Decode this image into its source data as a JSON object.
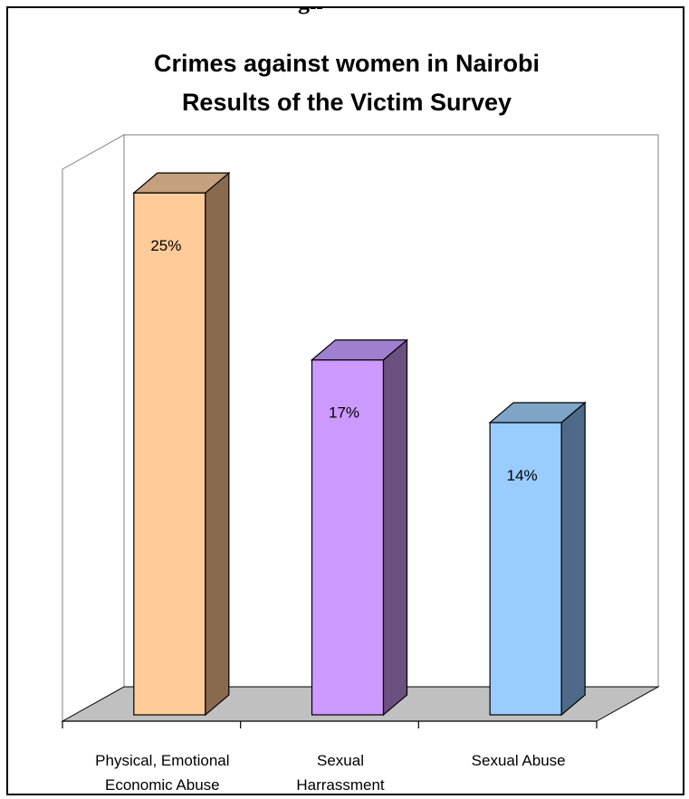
{
  "header": {
    "cut_title": "gh"
  },
  "chart_data": {
    "type": "bar",
    "title": "Crimes against women in  Nairobi",
    "subtitle": "Results of the Victim Survey",
    "xlabel": "",
    "ylabel": "",
    "ylim": [
      0,
      27
    ],
    "grid": false,
    "categories": [
      [
        "Physical, Emotional",
        "Economic Abuse"
      ],
      [
        "Sexual",
        "Harrassment"
      ],
      [
        "Sexual Abuse"
      ]
    ],
    "values": [
      25,
      17,
      14
    ],
    "data_labels": [
      "25%",
      "17%",
      "14%"
    ],
    "colors": {
      "front": [
        "#FFCC99",
        "#CC99FF",
        "#99CCFF"
      ],
      "side": [
        "#8A6A4E",
        "#6B5080",
        "#4E6A88"
      ],
      "top": [
        "#C4A07C",
        "#A07ED0",
        "#7EA4C8"
      ],
      "floor": "#C0C0C0",
      "walls": "#FFFFFF",
      "wall_stroke": "#808080"
    }
  }
}
